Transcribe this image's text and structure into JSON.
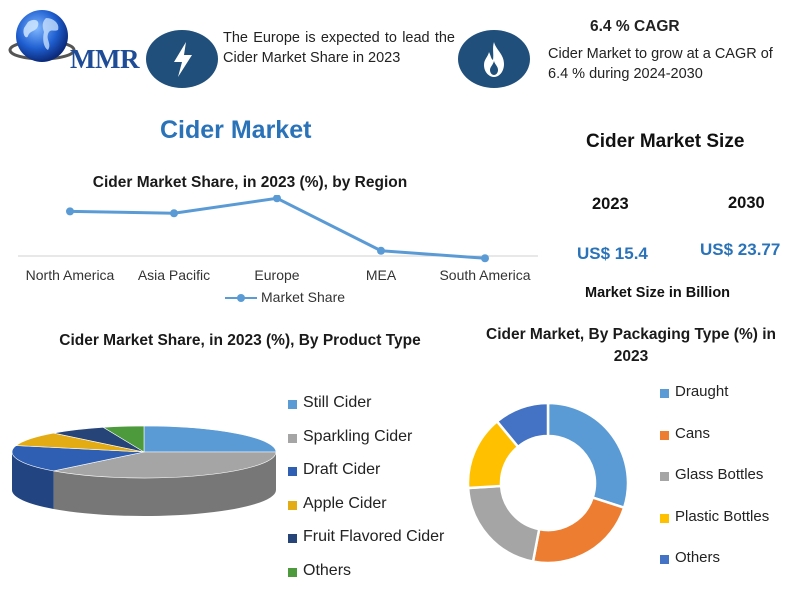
{
  "logo": {
    "text": "MMR"
  },
  "header": {
    "badge1_icon": "lightning-bolt-icon",
    "badge2_icon": "flame-icon",
    "text1": "The Europe is expected to lead the Cider Market Share in 2023",
    "cagr_title": "6.4 % CAGR",
    "text2": "Cider Market to grow at a CAGR of 6.4 % during 2024-2030"
  },
  "main_title": "Cider Market",
  "market_size": {
    "title": "Cider Market Size",
    "year1": "2023",
    "year2": "2030",
    "value1": "US$ 15.4",
    "value2": "US$ 23.77",
    "note": "Market Size in Billion"
  },
  "colors": {
    "line": "#5b9bd5",
    "blue": "#5b9bd5",
    "gray": "#a5a5a5",
    "dark_blue": "#2f5fb3",
    "gold": "#e3ac14",
    "navy": "#264478",
    "green": "#4c9a3c",
    "orange": "#ed7d31",
    "yellow": "#ffc000",
    "mid_blue": "#4472c4",
    "badge": "#1f4f7a",
    "title_blue": "#2a73b8"
  },
  "chart_data": [
    {
      "type": "line",
      "title": "Cider Market Share, in 2023 (%), by Region",
      "categories": [
        "North America",
        "Asia Pacific",
        "Europe",
        "MEA",
        "South America"
      ],
      "series": [
        {
          "name": "Market Share",
          "values": [
            27,
            26,
            34,
            6,
            2
          ]
        }
      ],
      "ylim": [
        0,
        40
      ],
      "grid": false,
      "legend": "bottom"
    },
    {
      "type": "pie",
      "title": "Cider Market Share, in 2023 (%), By Product Type",
      "categories": [
        "Still Cider",
        "Sparkling Cider",
        "Draft Cider",
        "Apple Cider",
        "Fruit Flavored Cider",
        "Others"
      ],
      "values": [
        25,
        37,
        17,
        9,
        7,
        5
      ],
      "legend": "right"
    },
    {
      "type": "pie",
      "title": "Cider Market, By Packaging Type (%) in 2023",
      "categories": [
        "Draught",
        "Cans",
        "Glass Bottles",
        "Plastic Bottles",
        "Others"
      ],
      "values": [
        30,
        23,
        21,
        15,
        11
      ],
      "legend": "right"
    }
  ]
}
